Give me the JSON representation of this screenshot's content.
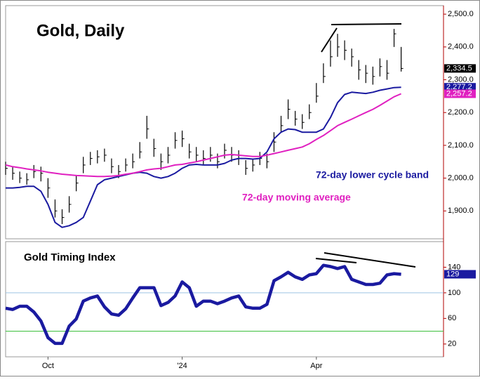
{
  "chart_data": [
    {
      "type": "ohlc",
      "title": "Gold, Daily",
      "xlim": [
        0,
        62
      ],
      "ylim": [
        1815,
        2526
      ],
      "yticks": [
        {
          "value": 2500,
          "label": "2,500.0"
        },
        {
          "value": 2400,
          "label": "2,400.0"
        },
        {
          "value": 2300,
          "label": "2,300.0"
        },
        {
          "value": 2200,
          "label": "2,200.0"
        },
        {
          "value": 2100,
          "label": "2,100.0"
        },
        {
          "value": 2000,
          "label": "2,000.0"
        },
        {
          "value": 1900,
          "label": "1,900.0"
        }
      ],
      "bar_color": "#000000",
      "high": [
        2050,
        2035,
        2020,
        2015,
        2040,
        2035,
        2000,
        1935,
        1905,
        1945,
        2010,
        2065,
        2080,
        2085,
        2090,
        2060,
        2040,
        2060,
        2075,
        2110,
        2190,
        2120,
        2075,
        2095,
        2140,
        2145,
        2105,
        2095,
        2085,
        2095,
        2075,
        2105,
        2095,
        2085,
        2055,
        2060,
        2080,
        2075,
        2140,
        2190,
        2240,
        2205,
        2195,
        2225,
        2290,
        2350,
        2420,
        2440,
        2420,
        2395,
        2360,
        2345,
        2340,
        2365,
        2360,
        2455,
        2400
      ],
      "low": [
        2010,
        1995,
        1985,
        1980,
        2000,
        1990,
        1940,
        1880,
        1860,
        1895,
        1960,
        2015,
        2040,
        2045,
        2050,
        2015,
        2000,
        2020,
        2030,
        2060,
        2120,
        2065,
        2025,
        2045,
        2090,
        2095,
        2060,
        2050,
        2040,
        2050,
        2030,
        2060,
        2050,
        2040,
        2010,
        2020,
        2040,
        2030,
        2080,
        2140,
        2180,
        2160,
        2150,
        2180,
        2230,
        2290,
        2340,
        2370,
        2360,
        2340,
        2300,
        2290,
        2285,
        2310,
        2300,
        2400,
        2325
      ],
      "close": [
        2030,
        2015,
        2000,
        1995,
        2020,
        2015,
        1970,
        1900,
        1880,
        1920,
        1985,
        2040,
        2060,
        2065,
        2070,
        2035,
        2020,
        2040,
        2050,
        2080,
        2150,
        2090,
        2050,
        2070,
        2115,
        2120,
        2080,
        2070,
        2060,
        2070,
        2050,
        2085,
        2070,
        2060,
        2030,
        2040,
        2060,
        2050,
        2110,
        2160,
        2210,
        2180,
        2170,
        2200,
        2250,
        2310,
        2370,
        2400,
        2390,
        2370,
        2330,
        2320,
        2310,
        2340,
        2320,
        2440,
        2334.5
      ],
      "close_label": "2,334.5",
      "series": [
        {
          "name": "72-day lower cycle band",
          "color": "#1a1aa0",
          "values": [
            1970,
            1970,
            1972,
            1975,
            1975,
            1960,
            1920,
            1865,
            1850,
            1855,
            1865,
            1880,
            1930,
            1980,
            1995,
            2000,
            2005,
            2010,
            2015,
            2018,
            2015,
            2005,
            2000,
            2005,
            2015,
            2030,
            2040,
            2042,
            2040,
            2040,
            2040,
            2045,
            2055,
            2060,
            2060,
            2058,
            2060,
            2080,
            2120,
            2140,
            2150,
            2148,
            2140,
            2140,
            2140,
            2150,
            2185,
            2230,
            2255,
            2262,
            2260,
            2258,
            2262,
            2268,
            2272,
            2276,
            2277.2
          ],
          "last_label": "2,277.2"
        },
        {
          "name": "72-day moving average",
          "color": "#e020c0",
          "values": [
            2040,
            2035,
            2032,
            2028,
            2025,
            2022,
            2018,
            2015,
            2012,
            2010,
            2008,
            2007,
            2006,
            2005,
            2005,
            2006,
            2008,
            2012,
            2015,
            2020,
            2025,
            2028,
            2030,
            2035,
            2040,
            2042,
            2046,
            2050,
            2055,
            2060,
            2065,
            2070,
            2072,
            2070,
            2068,
            2066,
            2066,
            2070,
            2075,
            2080,
            2085,
            2090,
            2095,
            2105,
            2118,
            2130,
            2145,
            2160,
            2170,
            2180,
            2190,
            2200,
            2210,
            2222,
            2235,
            2248,
            2257.2
          ],
          "last_label": "2,257.2"
        }
      ]
    },
    {
      "type": "line",
      "title": "Gold Timing Index",
      "xlim": [
        0,
        62
      ],
      "xticks": [
        {
          "value": 6,
          "label": "Oct"
        },
        {
          "value": 25,
          "label": "'24"
        },
        {
          "value": 44,
          "label": "Apr"
        }
      ],
      "ylim": [
        0,
        180
      ],
      "yticks": [
        140,
        100,
        60,
        20
      ],
      "hlines": [
        {
          "value": 100,
          "color": "#9cc4e4"
        },
        {
          "value": 40,
          "color": "#3cbf3c"
        }
      ],
      "series": [
        {
          "name": "Gold Timing Index",
          "color": "#1a1aa0",
          "values": [
            76,
            74,
            79,
            79,
            70,
            56,
            30,
            21,
            21,
            48,
            59,
            87,
            92,
            95,
            78,
            67,
            65,
            75,
            92,
            108,
            108,
            108,
            80,
            85,
            95,
            117,
            108,
            79,
            87,
            87,
            83,
            87,
            92,
            95,
            78,
            76,
            76,
            82,
            119,
            125,
            132,
            125,
            121,
            128,
            130,
            143,
            141,
            138,
            141,
            121,
            117,
            113,
            113,
            115,
            128,
            130,
            129
          ],
          "last_label": "129"
        }
      ]
    }
  ]
}
